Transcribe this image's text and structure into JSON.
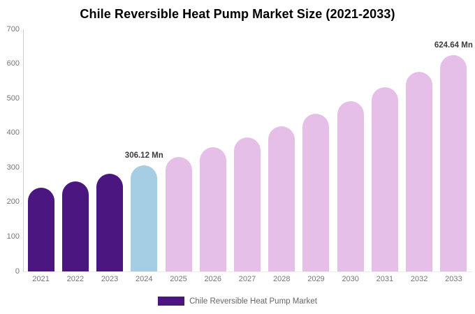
{
  "title": "Chile Reversible Heat Pump Market Size (2021-2033)",
  "chart_data": {
    "type": "bar",
    "title": "Chile Reversible Heat Pump Market Size (2021-2033)",
    "categories": [
      "2021",
      "2022",
      "2023",
      "2024",
      "2025",
      "2026",
      "2027",
      "2028",
      "2029",
      "2030",
      "2031",
      "2032",
      "2033"
    ],
    "values": [
      241.3,
      261.2,
      282.8,
      306.12,
      331.4,
      358.7,
      388.3,
      420.3,
      455.0,
      492.5,
      533.2,
      577.1,
      624.64
    ],
    "unit": "Mn",
    "xlabel": "",
    "ylabel": "",
    "ylim": [
      0,
      700
    ],
    "yticks": [
      0,
      100,
      200,
      300,
      400,
      500,
      600,
      700
    ],
    "grid": false,
    "legend_position": "bottom",
    "bar_colors": [
      "#4B1680",
      "#4B1680",
      "#4B1680",
      "#A5CDE4",
      "#E5BFE8",
      "#E5BFE8",
      "#E5BFE8",
      "#E5BFE8",
      "#E5BFE8",
      "#E5BFE8",
      "#E5BFE8",
      "#E5BFE8",
      "#E5BFE8"
    ],
    "color_roles": {
      "historical": "#4B1680",
      "base_year": "#A5CDE4",
      "forecast": "#E5BFE8"
    },
    "annotations": [
      {
        "category": "2024",
        "text": "306.12 Mn"
      },
      {
        "category": "2033",
        "text": "624.64 Mn"
      }
    ]
  },
  "legend": {
    "label": "Chile Reversible Heat Pump Market",
    "swatch_color": "#4B1680"
  }
}
